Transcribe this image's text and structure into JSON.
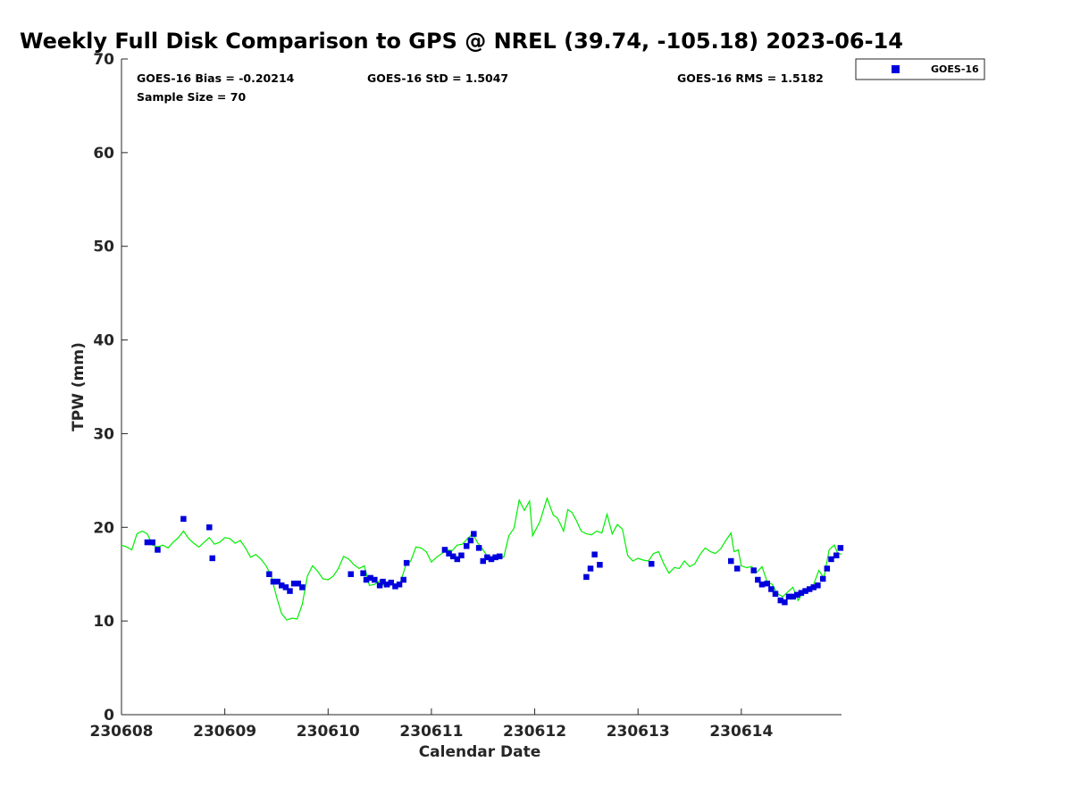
{
  "chart_data": {
    "type": "scatter",
    "title": "Weekly Full Disk Comparison to GPS @ NREL (39.74, -105.18) 2023-06-14",
    "xlabel": "Calendar Date",
    "ylabel": "TPW (mm)",
    "xlim": [
      0,
      6.97
    ],
    "ylim": [
      0,
      70
    ],
    "x_ticks": [
      {
        "pos": 0,
        "label": "230608"
      },
      {
        "pos": 1,
        "label": "230609"
      },
      {
        "pos": 2,
        "label": "230610"
      },
      {
        "pos": 3,
        "label": "230611"
      },
      {
        "pos": 4,
        "label": "230612"
      },
      {
        "pos": 5,
        "label": "230613"
      },
      {
        "pos": 6,
        "label": "230614"
      }
    ],
    "y_ticks": [
      0,
      10,
      20,
      30,
      40,
      50,
      60,
      70
    ],
    "grid": false,
    "legend": {
      "placement": "outside-top-right",
      "entries": [
        "GOES-16"
      ]
    },
    "stats": {
      "bias": "GOES-16 Bias = -0.20214",
      "std": "GOES-16 StD = 1.5047",
      "rms": "GOES-16 RMS = 1.5182",
      "sample": "Sample Size = 70"
    },
    "colors": {
      "goes": "#0000dd",
      "gps": "#00ee00",
      "axis": "#262626"
    },
    "series": [
      {
        "name": "GOES-16",
        "marker": "square",
        "points": [
          [
            0.25,
            18.4
          ],
          [
            0.3,
            18.4
          ],
          [
            0.35,
            17.6
          ],
          [
            0.6,
            20.9
          ],
          [
            0.85,
            20.0
          ],
          [
            0.88,
            16.7
          ],
          [
            1.43,
            15.0
          ],
          [
            1.47,
            14.2
          ],
          [
            1.51,
            14.2
          ],
          [
            1.55,
            13.8
          ],
          [
            1.59,
            13.6
          ],
          [
            1.63,
            13.2
          ],
          [
            1.67,
            14.0
          ],
          [
            1.71,
            14.0
          ],
          [
            1.75,
            13.6
          ],
          [
            2.22,
            15.0
          ],
          [
            2.34,
            15.1
          ],
          [
            2.37,
            14.4
          ],
          [
            2.41,
            14.6
          ],
          [
            2.45,
            14.4
          ],
          [
            2.5,
            13.8
          ],
          [
            2.53,
            14.2
          ],
          [
            2.57,
            13.9
          ],
          [
            2.61,
            14.1
          ],
          [
            2.65,
            13.7
          ],
          [
            2.69,
            13.9
          ],
          [
            2.73,
            14.4
          ],
          [
            2.76,
            16.2
          ],
          [
            3.13,
            17.6
          ],
          [
            3.17,
            17.2
          ],
          [
            3.21,
            16.9
          ],
          [
            3.25,
            16.6
          ],
          [
            3.29,
            17.0
          ],
          [
            3.34,
            18.0
          ],
          [
            3.38,
            18.6
          ],
          [
            3.41,
            19.3
          ],
          [
            3.46,
            17.8
          ],
          [
            3.5,
            16.4
          ],
          [
            3.54,
            16.8
          ],
          [
            3.58,
            16.6
          ],
          [
            3.62,
            16.8
          ],
          [
            3.66,
            16.9
          ],
          [
            4.5,
            14.7
          ],
          [
            4.54,
            15.6
          ],
          [
            4.58,
            17.1
          ],
          [
            4.63,
            16.0
          ],
          [
            5.13,
            16.1
          ],
          [
            5.9,
            16.4
          ],
          [
            5.96,
            15.6
          ],
          [
            6.12,
            15.4
          ],
          [
            6.16,
            14.4
          ],
          [
            6.2,
            13.9
          ],
          [
            6.25,
            14.0
          ],
          [
            6.29,
            13.4
          ],
          [
            6.33,
            12.9
          ],
          [
            6.38,
            12.2
          ],
          [
            6.42,
            12.0
          ],
          [
            6.46,
            12.6
          ],
          [
            6.5,
            12.6
          ],
          [
            6.54,
            12.8
          ],
          [
            6.58,
            13.0
          ],
          [
            6.62,
            13.2
          ],
          [
            6.66,
            13.4
          ],
          [
            6.7,
            13.6
          ],
          [
            6.74,
            13.8
          ],
          [
            6.79,
            14.5
          ],
          [
            6.83,
            15.6
          ],
          [
            6.87,
            16.6
          ],
          [
            6.92,
            17.0
          ],
          [
            6.96,
            17.8
          ]
        ]
      },
      {
        "name": "GPS",
        "marker": "line",
        "points": [
          [
            0,
            18.1
          ],
          [
            0.05,
            17.9
          ],
          [
            0.1,
            17.6
          ],
          [
            0.15,
            19.3
          ],
          [
            0.2,
            19.6
          ],
          [
            0.25,
            19.3
          ],
          [
            0.3,
            18.1
          ],
          [
            0.35,
            17.9
          ],
          [
            0.4,
            18.1
          ],
          [
            0.45,
            17.8
          ],
          [
            0.5,
            18.4
          ],
          [
            0.55,
            18.9
          ],
          [
            0.6,
            19.6
          ],
          [
            0.65,
            18.8
          ],
          [
            0.7,
            18.3
          ],
          [
            0.75,
            17.9
          ],
          [
            0.8,
            18.4
          ],
          [
            0.85,
            18.9
          ],
          [
            0.9,
            18.2
          ],
          [
            0.95,
            18.4
          ],
          [
            1.0,
            18.9
          ],
          [
            1.05,
            18.8
          ],
          [
            1.1,
            18.3
          ],
          [
            1.15,
            18.6
          ],
          [
            1.2,
            17.8
          ],
          [
            1.25,
            16.8
          ],
          [
            1.3,
            17.1
          ],
          [
            1.35,
            16.6
          ],
          [
            1.4,
            15.9
          ],
          [
            1.45,
            14.8
          ],
          [
            1.5,
            12.6
          ],
          [
            1.55,
            10.8
          ],
          [
            1.6,
            10.1
          ],
          [
            1.65,
            10.3
          ],
          [
            1.7,
            10.2
          ],
          [
            1.75,
            11.8
          ],
          [
            1.8,
            14.8
          ],
          [
            1.85,
            15.9
          ],
          [
            1.9,
            15.3
          ],
          [
            1.95,
            14.5
          ],
          [
            2.0,
            14.4
          ],
          [
            2.05,
            14.8
          ],
          [
            2.1,
            15.6
          ],
          [
            2.15,
            16.9
          ],
          [
            2.2,
            16.6
          ],
          [
            2.25,
            16.0
          ],
          [
            2.3,
            15.6
          ],
          [
            2.35,
            15.9
          ],
          [
            2.4,
            13.8
          ],
          [
            2.45,
            13.9
          ],
          [
            2.5,
            14.3
          ],
          [
            2.55,
            13.6
          ],
          [
            2.6,
            13.9
          ],
          [
            2.65,
            13.8
          ],
          [
            2.7,
            14.1
          ],
          [
            2.75,
            15.9
          ],
          [
            2.8,
            16.4
          ],
          [
            2.85,
            17.9
          ],
          [
            2.9,
            17.8
          ],
          [
            2.95,
            17.4
          ],
          [
            3.0,
            16.3
          ],
          [
            3.05,
            16.8
          ],
          [
            3.1,
            17.2
          ],
          [
            3.15,
            17.6
          ],
          [
            3.2,
            17.5
          ],
          [
            3.25,
            18.1
          ],
          [
            3.3,
            18.2
          ],
          [
            3.35,
            18.8
          ],
          [
            3.4,
            19.3
          ],
          [
            3.45,
            18.3
          ],
          [
            3.5,
            17.6
          ],
          [
            3.55,
            16.8
          ],
          [
            3.6,
            16.9
          ],
          [
            3.65,
            17.1
          ],
          [
            3.7,
            16.8
          ],
          [
            3.75,
            19.1
          ],
          [
            3.8,
            19.9
          ],
          [
            3.85,
            22.9
          ],
          [
            3.9,
            21.8
          ],
          [
            3.95,
            22.8
          ],
          [
            3.98,
            19.1
          ],
          [
            4.05,
            20.6
          ],
          [
            4.12,
            23.1
          ],
          [
            4.18,
            21.3
          ],
          [
            4.22,
            21.0
          ],
          [
            4.28,
            19.6
          ],
          [
            4.32,
            21.9
          ],
          [
            4.36,
            21.6
          ],
          [
            4.4,
            20.8
          ],
          [
            4.45,
            19.6
          ],
          [
            4.5,
            19.3
          ],
          [
            4.55,
            19.2
          ],
          [
            4.6,
            19.6
          ],
          [
            4.65,
            19.4
          ],
          [
            4.7,
            21.4
          ],
          [
            4.75,
            19.3
          ],
          [
            4.8,
            20.3
          ],
          [
            4.85,
            19.8
          ],
          [
            4.9,
            17.0
          ],
          [
            4.95,
            16.4
          ],
          [
            5.0,
            16.7
          ],
          [
            5.05,
            16.5
          ],
          [
            5.1,
            16.4
          ],
          [
            5.15,
            17.2
          ],
          [
            5.2,
            17.4
          ],
          [
            5.25,
            16.1
          ],
          [
            5.3,
            15.1
          ],
          [
            5.35,
            15.7
          ],
          [
            5.4,
            15.6
          ],
          [
            5.45,
            16.4
          ],
          [
            5.5,
            15.8
          ],
          [
            5.55,
            16.1
          ],
          [
            5.6,
            17.1
          ],
          [
            5.65,
            17.8
          ],
          [
            5.7,
            17.4
          ],
          [
            5.75,
            17.2
          ],
          [
            5.8,
            17.7
          ],
          [
            5.85,
            18.6
          ],
          [
            5.9,
            19.4
          ],
          [
            5.93,
            17.4
          ],
          [
            5.97,
            17.6
          ],
          [
            6.0,
            15.9
          ],
          [
            6.05,
            15.7
          ],
          [
            6.1,
            15.8
          ],
          [
            6.15,
            15.2
          ],
          [
            6.2,
            15.8
          ],
          [
            6.25,
            14.2
          ],
          [
            6.3,
            13.9
          ],
          [
            6.35,
            12.9
          ],
          [
            6.4,
            12.6
          ],
          [
            6.45,
            13.1
          ],
          [
            6.5,
            13.6
          ],
          [
            6.55,
            12.2
          ],
          [
            6.6,
            13.1
          ],
          [
            6.65,
            13.4
          ],
          [
            6.7,
            13.9
          ],
          [
            6.75,
            15.4
          ],
          [
            6.8,
            14.6
          ],
          [
            6.85,
            17.6
          ],
          [
            6.9,
            18.1
          ],
          [
            6.93,
            17.3
          ],
          [
            6.97,
            17.1
          ]
        ]
      }
    ]
  }
}
